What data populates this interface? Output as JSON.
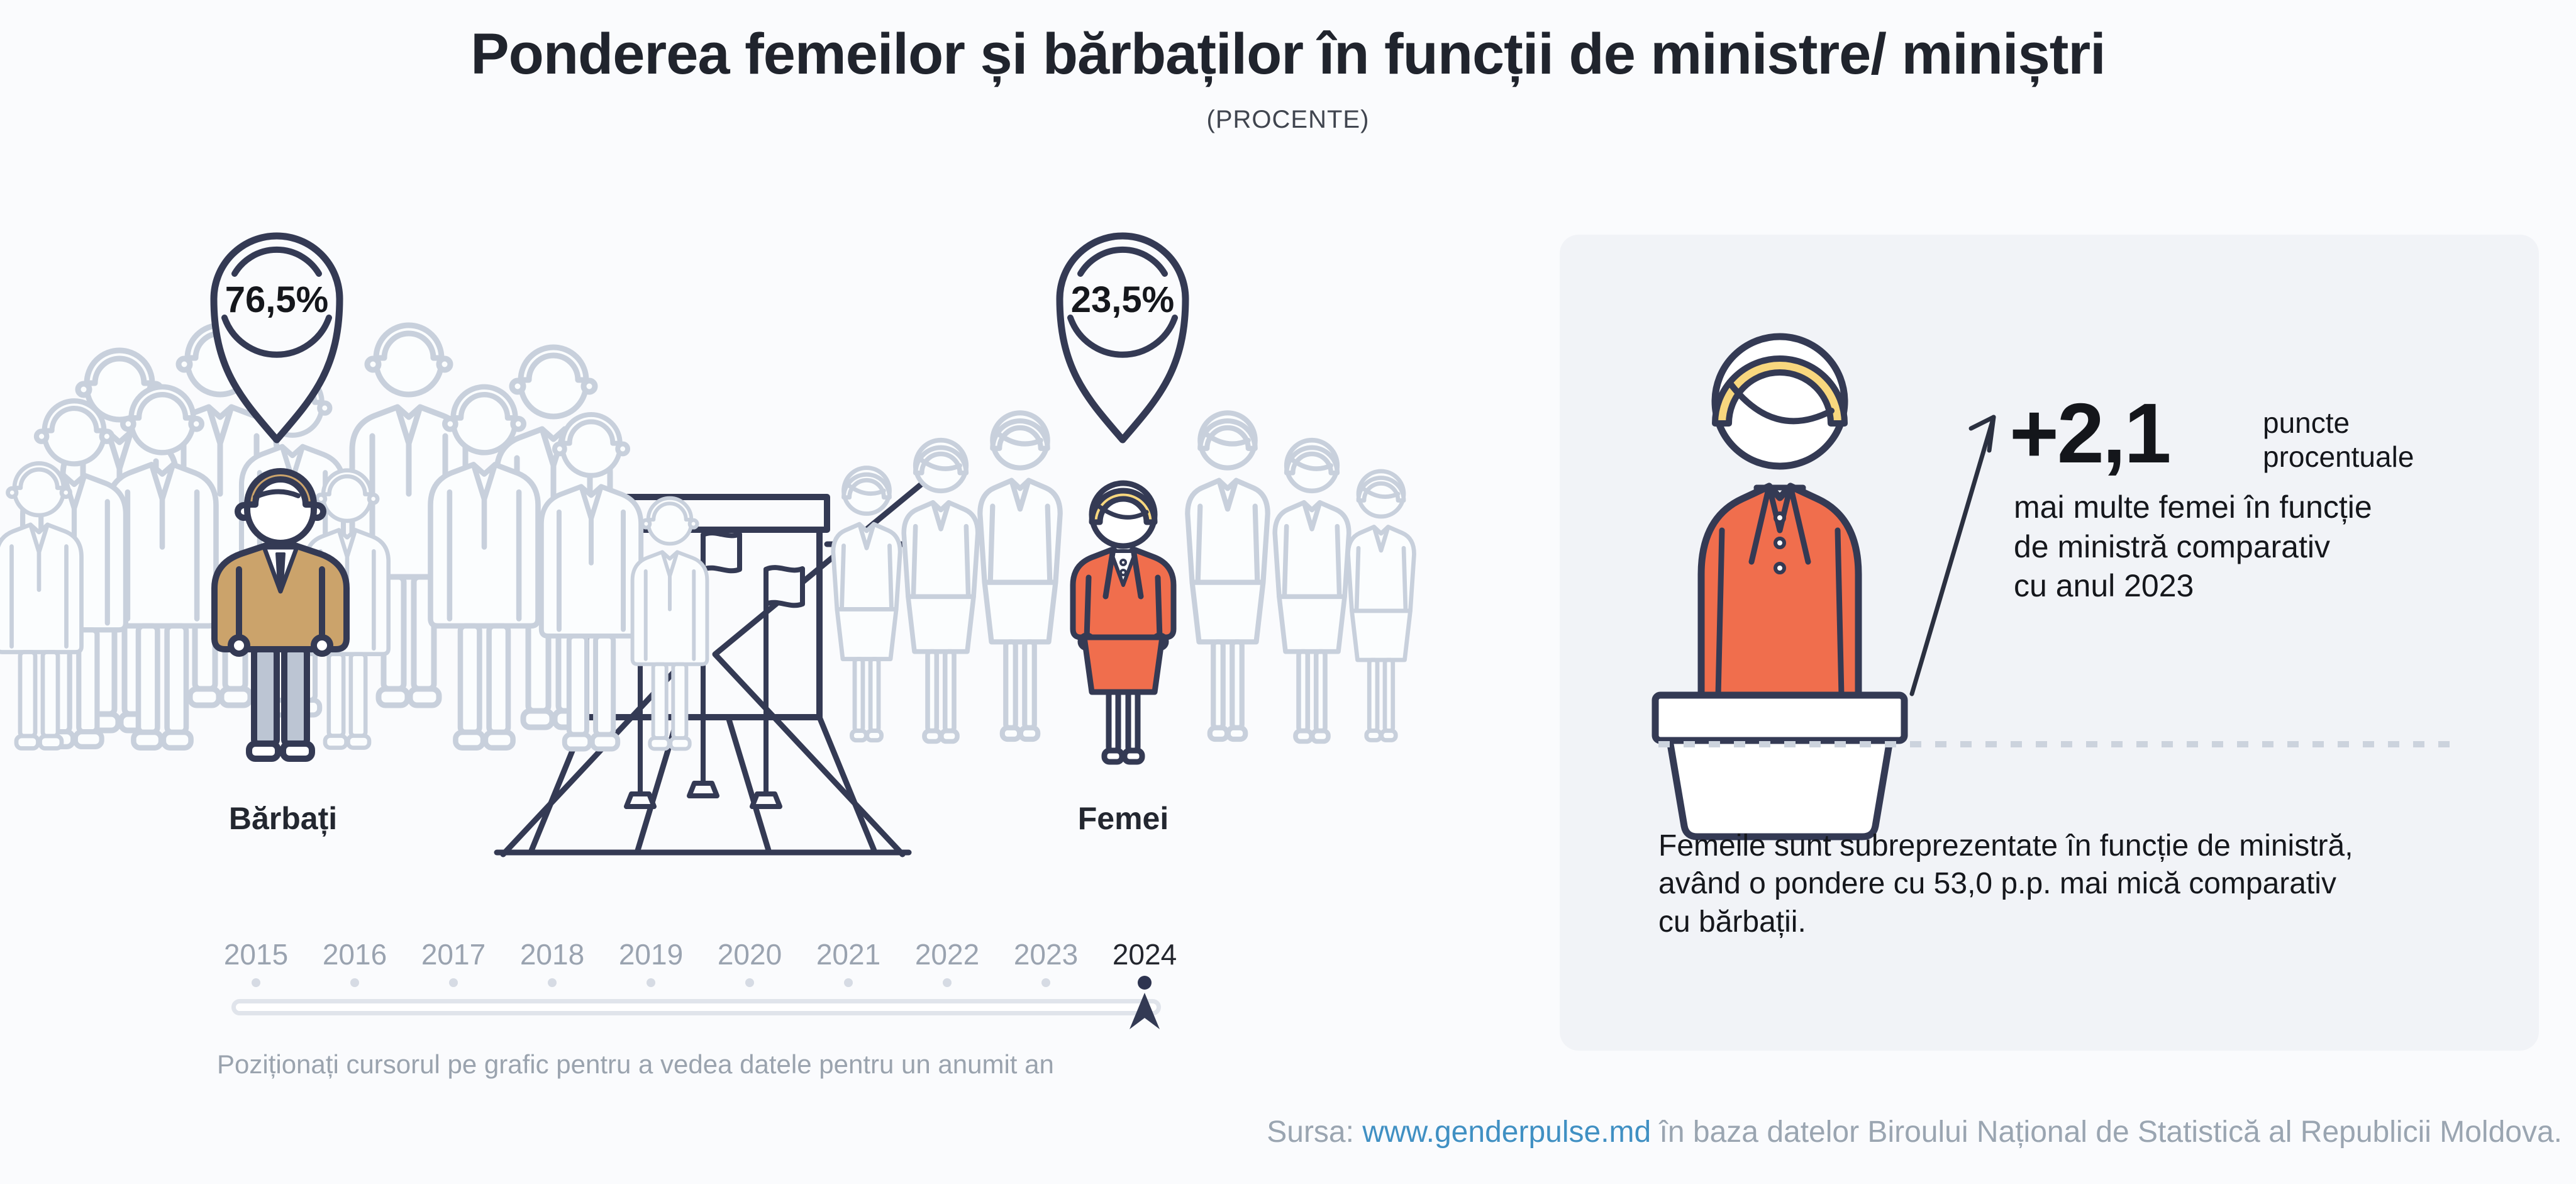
{
  "page": {
    "title": "Ponderea femeilor și bărbaților în funcții de ministre/ miniștri",
    "subtitle": "(PROCENTE)"
  },
  "chart_data": {
    "type": "pie",
    "representation": "pictogram-infographic",
    "title": "Ponderea femeilor și bărbaților în funcții de ministre/ miniștri",
    "subtitle": "(PROCENTE)",
    "unit": "%",
    "categories": [
      "Bărbați",
      "Femei"
    ],
    "values": [
      76.5,
      23.5
    ],
    "value_labels": [
      "76,5%",
      "23,5%"
    ],
    "selected_year": "2024",
    "timeline_years": [
      "2015",
      "2016",
      "2017",
      "2018",
      "2019",
      "2020",
      "2021",
      "2022",
      "2023",
      "2024"
    ],
    "change_vs_previous_year": {
      "value": "+2,1",
      "unit": "puncte procentuale",
      "description": "mai multe femei în funcție de ministră comparativ cu anul 2023"
    },
    "gap_note": "Femeile sunt subreprezentate în funcție de ministră, având o pondere cu 53,0 p.p. mai mică comparativ cu bărbații."
  },
  "groups": {
    "male": {
      "label": "Bărbați",
      "value": "76,5%"
    },
    "female": {
      "label": "Femei",
      "value": "23,5%"
    }
  },
  "timeline": {
    "years": [
      "2015",
      "2016",
      "2017",
      "2018",
      "2019",
      "2020",
      "2021",
      "2022",
      "2023",
      "2024"
    ],
    "selected": "2024",
    "hint": "Poziționați cursorul pe grafic pentru a vedea datele pentru un anumit an"
  },
  "panel": {
    "delta_value": "+2,1",
    "delta_unit": "puncte\nprocentuale",
    "delta_description": "mai multe femei în funcție\nde ministră comparativ\ncu anul 2023",
    "note": "Femeile sunt subreprezentate în funcție de ministră,\navând o pondere cu 53,0 p.p. mai mică comparativ\ncu bărbații."
  },
  "source": {
    "prefix": "Sursa: ",
    "link": "www.genderpulse.md",
    "suffix": " în baza datelor Biroului Național de Statistică al Republicii Moldova."
  },
  "colors": {
    "background": "#fafbfd",
    "panel_background": "#f1f3f7",
    "outline_navy": "#343a54",
    "crowd_gray": "#c8d0dc",
    "jacket_tan": "#cba36b",
    "pants_gray": "#bcc5d3",
    "suit_orange": "#f06e4d",
    "hair_blonde": "#f8d77e",
    "link_blue": "#4090c3"
  }
}
